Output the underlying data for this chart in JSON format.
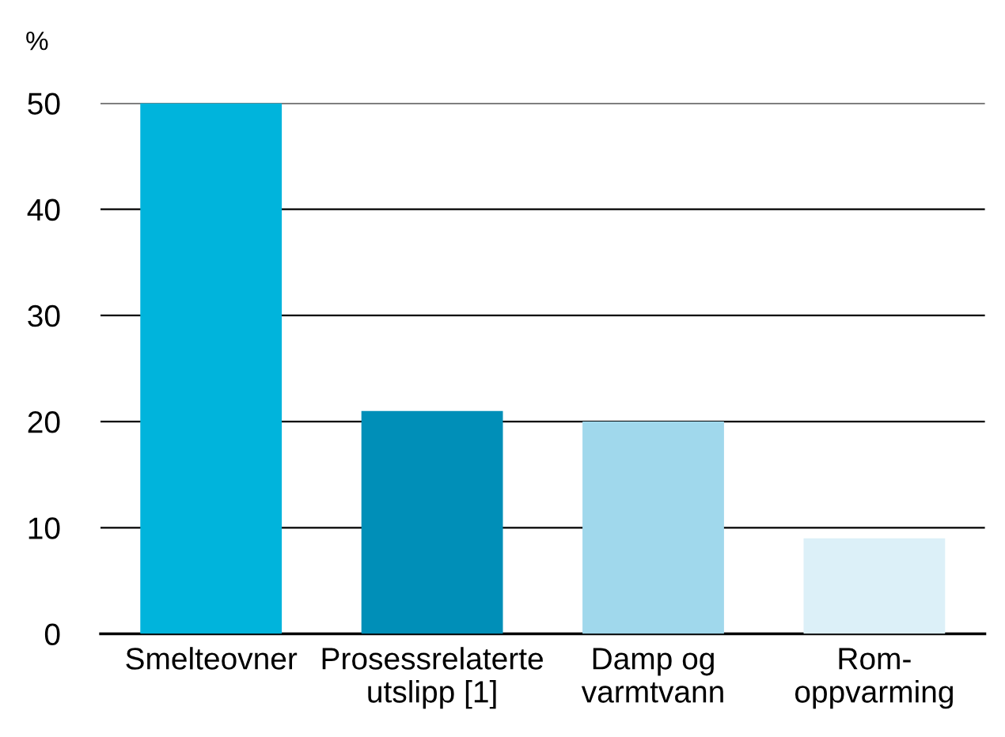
{
  "chart_data": {
    "type": "bar",
    "ylabel": "%",
    "categories": [
      "Smelteovner",
      "Prosessrelaterte\nutslipp [1]",
      "Damp og\nvarmtvann",
      "Rom-\noppvarming"
    ],
    "values": [
      50,
      21,
      20,
      9
    ],
    "colors": [
      "#00b4dc",
      "#008fb8",
      "#a0d8ec",
      "#dcf0f8"
    ],
    "ylim": [
      0,
      50
    ],
    "yticks": [
      0,
      10,
      20,
      30,
      40,
      50
    ],
    "grid": "y"
  }
}
